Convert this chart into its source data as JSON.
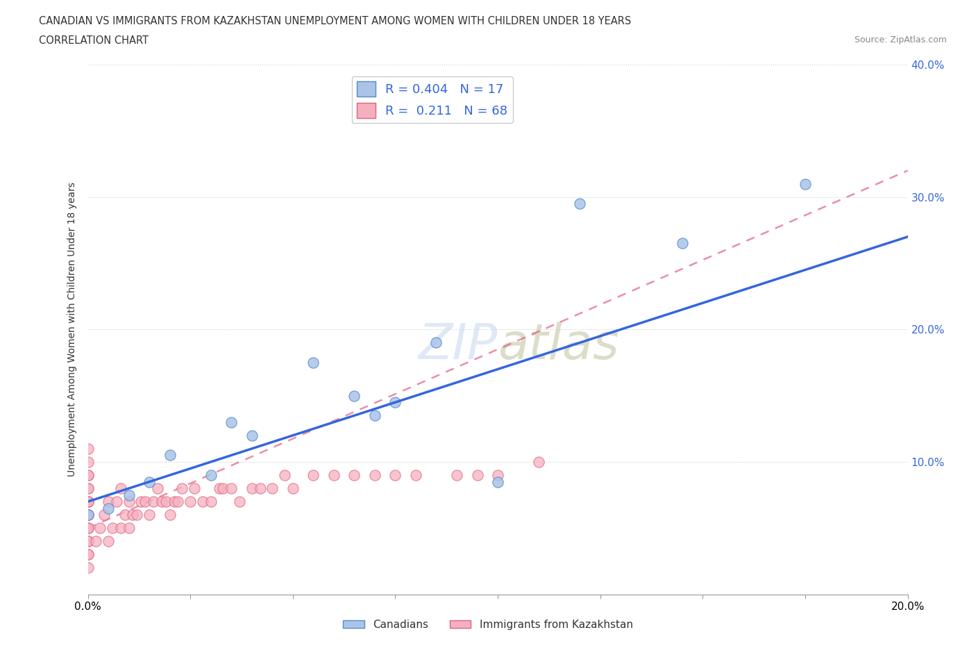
{
  "title_line1": "CANADIAN VS IMMIGRANTS FROM KAZAKHSTAN UNEMPLOYMENT AMONG WOMEN WITH CHILDREN UNDER 18 YEARS",
  "title_line2": "CORRELATION CHART",
  "source": "Source: ZipAtlas.com",
  "ylabel": "Unemployment Among Women with Children Under 18 years",
  "xlim": [
    0.0,
    0.2
  ],
  "ylim": [
    0.0,
    0.4
  ],
  "xticks": [
    0.0,
    0.025,
    0.05,
    0.075,
    0.1,
    0.125,
    0.15,
    0.175,
    0.2
  ],
  "yticks": [
    0.0,
    0.1,
    0.2,
    0.3,
    0.4
  ],
  "xtick_labels_ends": [
    "0.0%",
    "20.0%"
  ],
  "ytick_labels_right": [
    "",
    "10.0%",
    "20.0%",
    "30.0%",
    "40.0%"
  ],
  "canadian_color": "#aac4e8",
  "kazakh_color": "#f5b0c0",
  "canadian_edge": "#5588cc",
  "kazakh_edge": "#e06080",
  "regression_blue": "#3366dd",
  "regression_pink_dashed": "#dd4466",
  "R_canadian": 0.404,
  "N_canadian": 17,
  "R_kazakh": 0.211,
  "N_kazakh": 68,
  "watermark_text": "ZIPatlas",
  "background_color": "#ffffff",
  "legend_label_canadian": "Canadians",
  "legend_label_kazakh": "Immigrants from Kazakhstan",
  "can_x": [
    0.0,
    0.005,
    0.01,
    0.015,
    0.02,
    0.03,
    0.035,
    0.04,
    0.055,
    0.065,
    0.07,
    0.075,
    0.085,
    0.1,
    0.12,
    0.145,
    0.175
  ],
  "can_y": [
    0.06,
    0.065,
    0.075,
    0.085,
    0.105,
    0.09,
    0.13,
    0.12,
    0.175,
    0.15,
    0.135,
    0.145,
    0.19,
    0.085,
    0.295,
    0.265,
    0.31
  ],
  "kaz_x": [
    0.0,
    0.0,
    0.0,
    0.0,
    0.0,
    0.0,
    0.0,
    0.0,
    0.0,
    0.0,
    0.0,
    0.0,
    0.0,
    0.0,
    0.0,
    0.0,
    0.0,
    0.0,
    0.0,
    0.0,
    0.002,
    0.003,
    0.004,
    0.005,
    0.005,
    0.006,
    0.007,
    0.008,
    0.008,
    0.009,
    0.01,
    0.01,
    0.011,
    0.012,
    0.013,
    0.014,
    0.015,
    0.016,
    0.017,
    0.018,
    0.019,
    0.02,
    0.021,
    0.022,
    0.023,
    0.025,
    0.026,
    0.028,
    0.03,
    0.032,
    0.033,
    0.035,
    0.037,
    0.04,
    0.042,
    0.045,
    0.048,
    0.05,
    0.055,
    0.06,
    0.065,
    0.07,
    0.075,
    0.08,
    0.09,
    0.095,
    0.1,
    0.11
  ],
  "kaz_y": [
    0.02,
    0.03,
    0.03,
    0.04,
    0.04,
    0.05,
    0.05,
    0.05,
    0.06,
    0.06,
    0.06,
    0.07,
    0.07,
    0.07,
    0.08,
    0.08,
    0.09,
    0.09,
    0.1,
    0.11,
    0.04,
    0.05,
    0.06,
    0.04,
    0.07,
    0.05,
    0.07,
    0.05,
    0.08,
    0.06,
    0.05,
    0.07,
    0.06,
    0.06,
    0.07,
    0.07,
    0.06,
    0.07,
    0.08,
    0.07,
    0.07,
    0.06,
    0.07,
    0.07,
    0.08,
    0.07,
    0.08,
    0.07,
    0.07,
    0.08,
    0.08,
    0.08,
    0.07,
    0.08,
    0.08,
    0.08,
    0.09,
    0.08,
    0.09,
    0.09,
    0.09,
    0.09,
    0.09,
    0.09,
    0.09,
    0.09,
    0.09,
    0.1
  ]
}
